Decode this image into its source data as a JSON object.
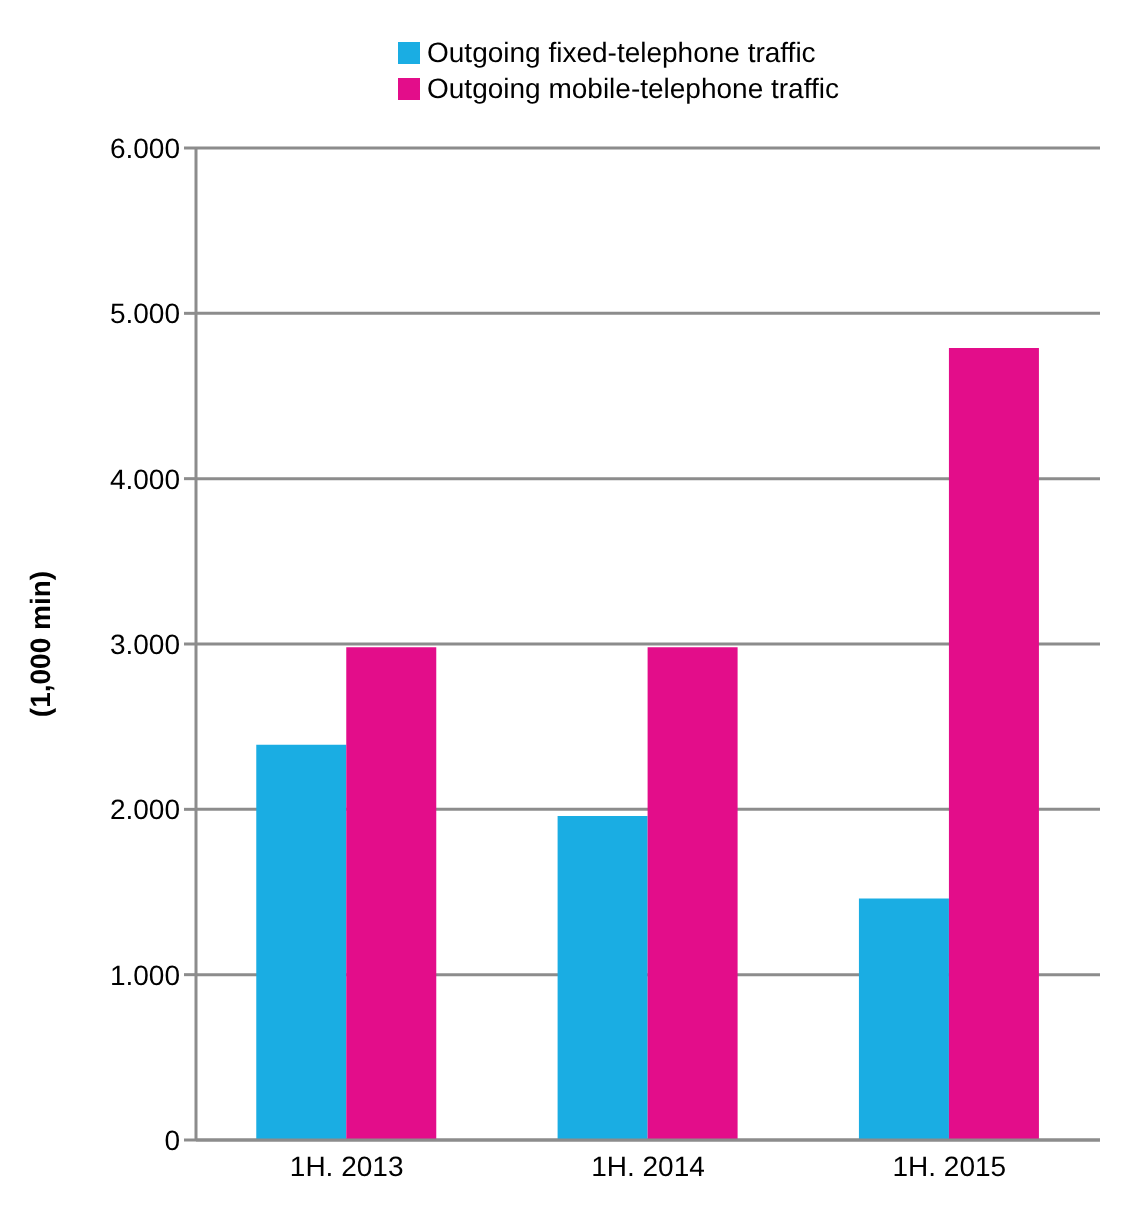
{
  "chart_data": {
    "type": "bar",
    "ylabel": "(1,000 min)",
    "categories": [
      "1H. 2013",
      "1H. 2014",
      "1H. 2015"
    ],
    "series": [
      {
        "name": "Outgoing fixed-telephone traffic",
        "color": "#1aade3",
        "values": [
          2390,
          1960,
          1460
        ]
      },
      {
        "name": "Outgoing mobile-telephone traffic",
        "color": "#e30d8a",
        "values": [
          2980,
          2980,
          4790
        ]
      }
    ],
    "ylim": [
      0,
      6000
    ],
    "yticks": [
      0,
      {
        "value": 1000,
        "label": "1.000"
      },
      {
        "value": 2000,
        "label": "2.000"
      },
      {
        "value": 3000,
        "label": "3.000"
      },
      {
        "value": 4000,
        "label": "4.000"
      },
      {
        "value": 5000,
        "label": "5.000"
      },
      {
        "value": 6000,
        "label": "6.000"
      }
    ],
    "grid": "y",
    "legend": "top"
  }
}
